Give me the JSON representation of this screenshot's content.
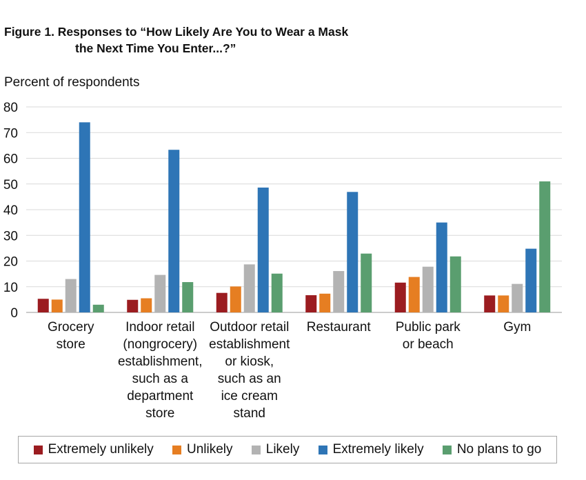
{
  "title_line1": "Figure 1. Responses to “How Likely Are You to Wear a Mask",
  "title_line2": "the Next Time You Enter...?”",
  "chart_data": {
    "type": "bar",
    "title": "Figure 1. Responses to “How Likely Are You to Wear a Mask the Next Time You Enter...?”",
    "ylabel": "Percent of respondents",
    "xlabel": "",
    "ylim": [
      0,
      80
    ],
    "yticks": [
      0,
      10,
      20,
      30,
      40,
      50,
      60,
      70,
      80
    ],
    "grid": true,
    "legend_position": "bottom",
    "categories": [
      "Grocery\nstore",
      "Indoor retail\n(nongrocery)\nestablishment,\nsuch as a\ndepartment\nstore",
      "Outdoor retail\nestablishment\nor kiosk,\nsuch as an\nice cream\nstand",
      "Restaurant",
      "Public park\nor beach",
      "Gym"
    ],
    "series": [
      {
        "name": "Extremely unlikely",
        "color": "#9b1c20",
        "values": [
          5.3,
          4.9,
          7.6,
          6.7,
          11.6,
          6.6
        ]
      },
      {
        "name": "Unlikely",
        "color": "#e67e22",
        "values": [
          5.0,
          5.5,
          10.1,
          7.3,
          13.8,
          6.6
        ]
      },
      {
        "name": "Likely",
        "color": "#b3b3b3",
        "values": [
          13.0,
          14.6,
          18.7,
          16.1,
          17.8,
          11.1
        ]
      },
      {
        "name": "Extremely likely",
        "color": "#2e75b6",
        "values": [
          74.0,
          63.3,
          48.6,
          46.9,
          35.0,
          24.8
        ]
      },
      {
        "name": "No plans to go",
        "color": "#5a9e6f",
        "values": [
          3.0,
          11.8,
          15.1,
          22.9,
          21.8,
          51.0
        ]
      }
    ]
  }
}
